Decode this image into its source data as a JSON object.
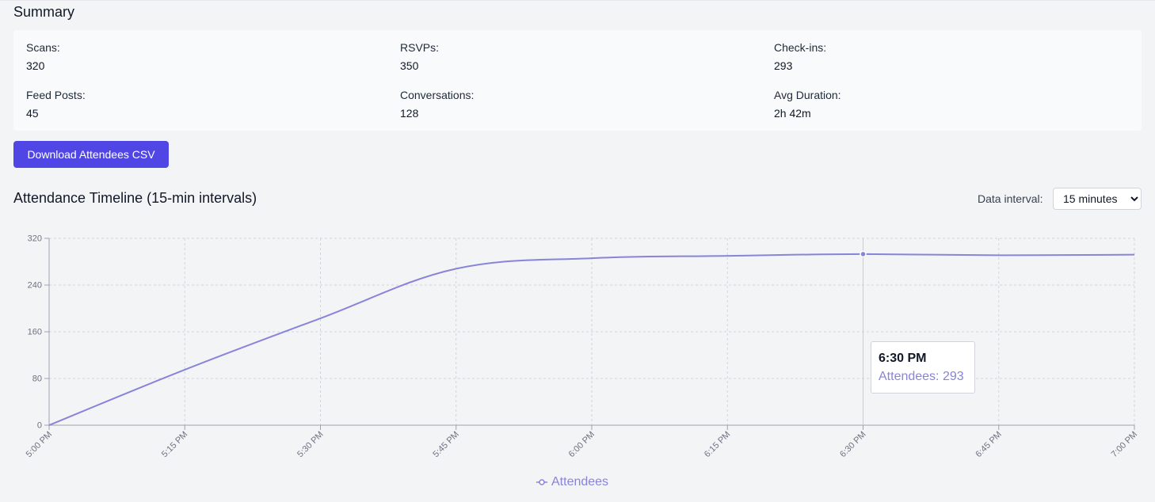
{
  "summary": {
    "title": "Summary",
    "stats": [
      {
        "label": "Scans:",
        "value": "320"
      },
      {
        "label": "RSVPs:",
        "value": "350"
      },
      {
        "label": "Check-ins:",
        "value": "293"
      },
      {
        "label": "Feed Posts:",
        "value": "45"
      },
      {
        "label": "Conversations:",
        "value": "128"
      },
      {
        "label": "Avg Duration:",
        "value": "2h 42m"
      }
    ]
  },
  "download_label": "Download Attendees CSV",
  "timeline": {
    "title": "Attendance Timeline (15-min intervals)",
    "interval_label": "Data interval:",
    "interval_value": "15 minutes"
  },
  "tooltip": {
    "time": "6:30 PM",
    "series_label": "Attendees: 293"
  },
  "colors": {
    "accent": "#4f46e5",
    "series": "#8884d8"
  },
  "chart_data": {
    "type": "line",
    "categories": [
      "5:00 PM",
      "5:15 PM",
      "5:30 PM",
      "5:45 PM",
      "6:00 PM",
      "6:15 PM",
      "6:30 PM",
      "6:45 PM",
      "7:00 PM"
    ],
    "series": [
      {
        "name": "Attendees",
        "values": [
          0,
          95,
          183,
          268,
          286,
          290,
          293,
          291,
          292
        ]
      }
    ],
    "ylim": [
      0,
      320
    ],
    "yticks": [
      0,
      80,
      160,
      240,
      320
    ],
    "grid": true,
    "legend": "bottom",
    "active_index": 6
  }
}
